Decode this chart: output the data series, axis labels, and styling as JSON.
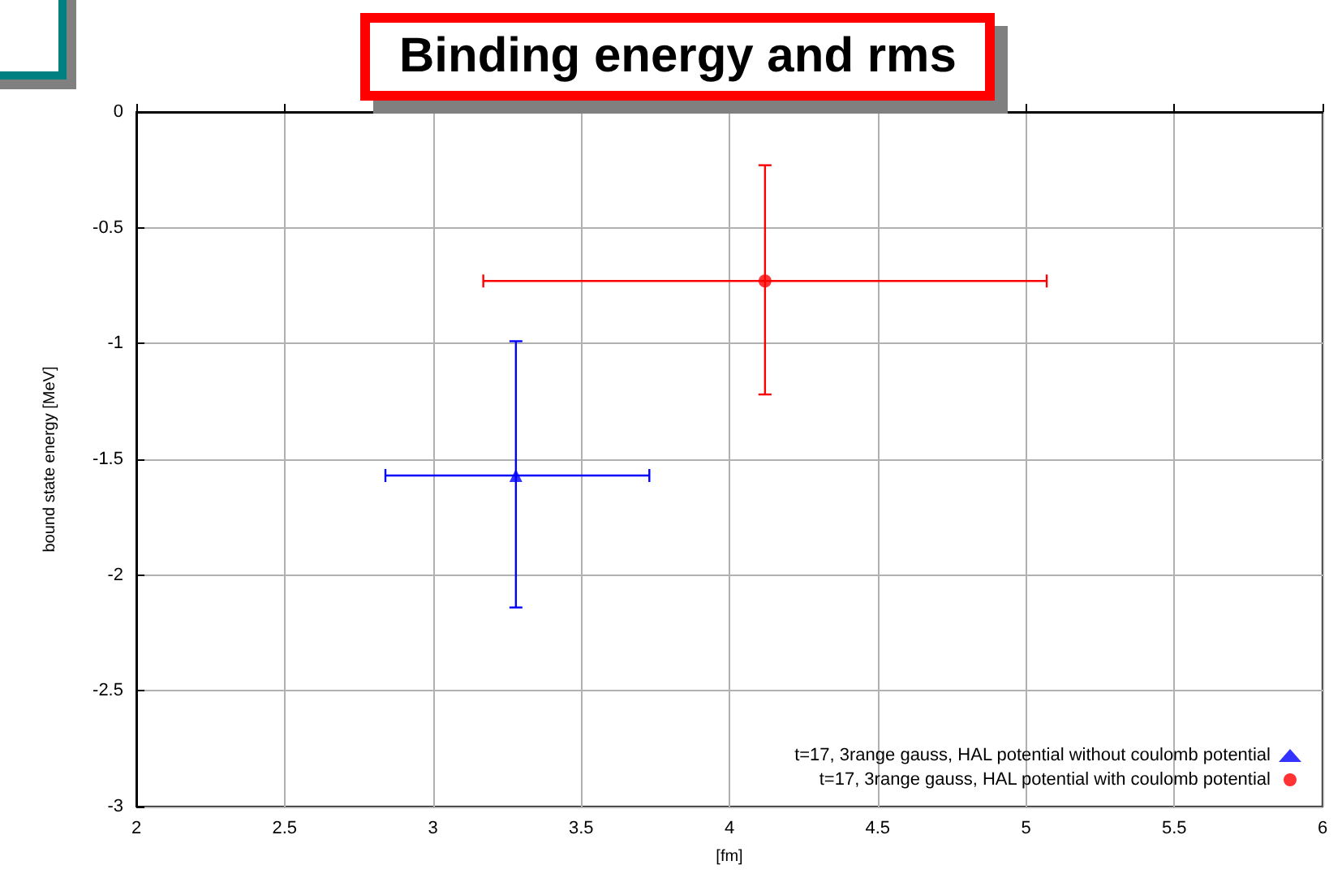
{
  "chart_data": {
    "type": "scatter",
    "title": "Binding energy and rms",
    "xlabel": "[fm]",
    "ylabel": "bound state energy [MeV]",
    "xlim": [
      2,
      6
    ],
    "xticks": [
      2,
      2.5,
      3,
      3.5,
      4,
      4.5,
      5,
      5.5,
      6
    ],
    "ylim": [
      -3,
      0
    ],
    "yticks": [
      -3,
      -2.5,
      -2,
      -1.5,
      -1,
      -0.5,
      0
    ],
    "grid": true,
    "legend": "bottom right",
    "series": [
      {
        "name": "t=17, 3range gauss, HAL potential without coulomb potential",
        "color": "#0000ff",
        "marker": "triangle",
        "x": [
          3.28
        ],
        "values": [
          -1.57
        ],
        "errors": [
          [
            -2.14,
            -0.99
          ]
        ],
        "xerrors": [
          [
            2.84,
            3.73
          ]
        ]
      },
      {
        "name": "t=17, 3range gauss, HAL potential with coulomb potential",
        "color": "#ff0000",
        "marker": "circle",
        "x": [
          4.12
        ],
        "values": [
          -0.73
        ],
        "errors": [
          [
            -1.22,
            -0.23
          ]
        ],
        "xerrors": [
          [
            3.17,
            5.07
          ]
        ]
      }
    ]
  }
}
